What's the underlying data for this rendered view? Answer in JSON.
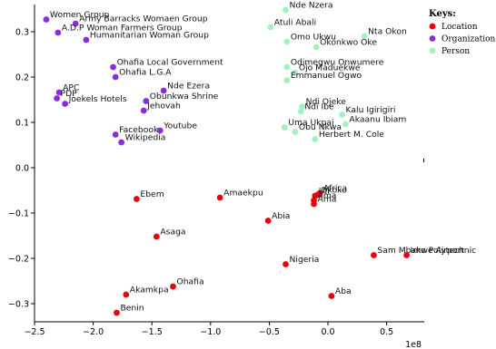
{
  "chart_data": {
    "type": "scatter",
    "title": "",
    "xlabel": "",
    "ylabel": "",
    "x_offset_label": "1e8",
    "xlim": [
      -2.5,
      0.82
    ],
    "ylim": [
      -0.34,
      0.36
    ],
    "x_ticks": [
      -2.5,
      -2.0,
      -1.5,
      -1.0,
      -0.5,
      0.0,
      0.5
    ],
    "x_tick_labels": [
      "−2.5",
      "−2.0",
      "−1.5",
      "−1.0",
      "−0.5",
      "0.0",
      "0.5"
    ],
    "y_ticks": [
      -0.3,
      -0.2,
      -0.1,
      0.0,
      0.1,
      0.2,
      0.3
    ],
    "y_tick_labels": [
      "−0.3",
      "−0.2",
      "−0.1",
      "0.0",
      "0.1",
      "0.2",
      "0.3"
    ],
    "grid": false,
    "legend": {
      "title": "Keys:",
      "placement": "right-top",
      "entries": [
        {
          "name": "Location",
          "color": "#e8000b"
        },
        {
          "name": "Organization",
          "color": "#8b2be2"
        },
        {
          "name": "Person",
          "color": "#a1f2c0"
        }
      ]
    },
    "series": [
      {
        "name": "Location",
        "color": "#e8000b",
        "points": [
          {
            "label": "Ebem",
            "x": -1.63,
            "y": -0.069
          },
          {
            "label": "Amaekpu",
            "x": -0.92,
            "y": -0.066
          },
          {
            "label": "Africa",
            "x": -0.07,
            "y": -0.056
          },
          {
            "label": "Okoko",
            "x": -0.09,
            "y": -0.06
          },
          {
            "label": "Uli",
            "x": -0.11,
            "y": -0.062
          },
          {
            "label": "Ama",
            "x": -0.12,
            "y": -0.072
          },
          {
            "label": "Ama",
            "x": -0.12,
            "y": -0.08
          },
          {
            "label": "Abia",
            "x": -0.51,
            "y": -0.117
          },
          {
            "label": "Asaga",
            "x": -1.46,
            "y": -0.152
          },
          {
            "label": "Nigeria",
            "x": -0.36,
            "y": -0.213
          },
          {
            "label": "Sam Mbakwe Airport",
            "x": 0.39,
            "y": -0.193
          },
          {
            "label": "Imo Polytechnic",
            "x": 0.67,
            "y": -0.193
          },
          {
            "label": "Ohafia",
            "x": -1.32,
            "y": -0.262
          },
          {
            "label": "Akamkpa",
            "x": -1.72,
            "y": -0.28
          },
          {
            "label": "Aba",
            "x": 0.03,
            "y": -0.283
          },
          {
            "label": "Benin",
            "x": -1.8,
            "y": -0.32
          }
        ]
      },
      {
        "name": "Organization",
        "color": "#8b2be2",
        "points": [
          {
            "label": "Women Group",
            "x": -2.4,
            "y": 0.327
          },
          {
            "label": "Army Barracks Womaen Group",
            "x": -2.15,
            "y": 0.318
          },
          {
            "label": "A.D.P Woman Farmers Group",
            "x": -2.3,
            "y": 0.298
          },
          {
            "label": "Humanitarian Woman Group",
            "x": -2.06,
            "y": 0.282
          },
          {
            "label": "Ohafia Local Government",
            "x": -1.83,
            "y": 0.222
          },
          {
            "label": "Ohafia L.G.A",
            "x": -1.81,
            "y": 0.2
          },
          {
            "label": "APC",
            "x": -2.29,
            "y": 0.166
          },
          {
            "label": "PDP",
            "x": -2.31,
            "y": 0.153
          },
          {
            "label": "Joekels Hotels",
            "x": -2.24,
            "y": 0.141
          },
          {
            "label": "Nde Ezera",
            "x": -1.4,
            "y": 0.17
          },
          {
            "label": "Obunkwa Shrine",
            "x": -1.55,
            "y": 0.147
          },
          {
            "label": "Jehovah",
            "x": -1.57,
            "y": 0.126
          },
          {
            "label": "Facebook",
            "x": -1.81,
            "y": 0.073
          },
          {
            "label": "Youtube",
            "x": -1.43,
            "y": 0.082
          },
          {
            "label": "Wikipedia",
            "x": -1.76,
            "y": 0.056
          }
        ]
      },
      {
        "name": "Person",
        "color": "#a1f2c0",
        "points": [
          {
            "label": "Nde Nzera",
            "x": -0.36,
            "y": 0.348
          },
          {
            "label": "Atuli Abali",
            "x": -0.49,
            "y": 0.31
          },
          {
            "label": "Nta Okon",
            "x": 0.31,
            "y": 0.29
          },
          {
            "label": "Omo Ukwu",
            "x": -0.35,
            "y": 0.278
          },
          {
            "label": "Okonkwo Oke",
            "x": -0.1,
            "y": 0.266
          },
          {
            "label": "Odimegwu Onwumere",
            "x": -0.35,
            "y": 0.222
          },
          {
            "label": "Ojo Maduekwe",
            "x": -0.28,
            "y": 0.21
          },
          {
            "label": "Emmanuel Ogwo",
            "x": -0.35,
            "y": 0.193
          },
          {
            "label": "Ndi Ojeke",
            "x": -0.22,
            "y": 0.135
          },
          {
            "label": "Ndi Ibe",
            "x": -0.23,
            "y": 0.124
          },
          {
            "label": "Kalu Igirigiri",
            "x": 0.12,
            "y": 0.117
          },
          {
            "label": "Akaanu Ibiam",
            "x": 0.15,
            "y": 0.096
          },
          {
            "label": "Uma Ukpai",
            "x": -0.37,
            "y": 0.089
          },
          {
            "label": "Obu Nkwa",
            "x": -0.28,
            "y": 0.079
          },
          {
            "label": "Herbert M. Cole",
            "x": -0.11,
            "y": 0.063
          }
        ]
      }
    ]
  }
}
